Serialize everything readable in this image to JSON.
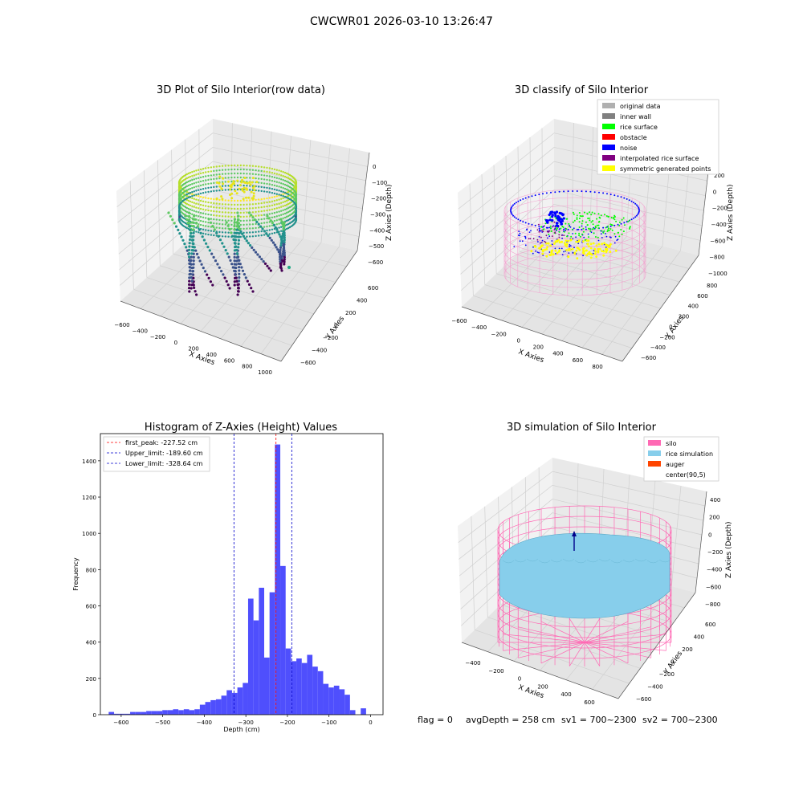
{
  "figure": {
    "suptitle": "CWCWR01 2026-03-10 13:26:47",
    "footer": {
      "flag": "flag = 0",
      "avg_depth": "avgDepth = 258 cm",
      "sv1": "sv1 = 700~2300",
      "sv2": "sv2 = 700~2300"
    }
  },
  "colors": {
    "hist_bar": "#4f4ffd",
    "first_peak": "#ff0000",
    "limits": "#0000cc",
    "pane": "#efefef",
    "silo": "#ff69b4",
    "rice_simulation": "#87ceeb",
    "auger": "#ff4500",
    "original": "#b0b0b0",
    "inner_wall": "#808080",
    "rice_surface": "#00ff00",
    "obstacle": "#ff0000",
    "noise": "#0000ff",
    "interpolated": "#800080",
    "symmetric": "#ffff00"
  },
  "chart_data": [
    {
      "type": "scatter",
      "projection": "3d",
      "title": "3D Plot of Silo Interior(row data)",
      "xlabel": "X Axies",
      "ylabel": "Y Axies",
      "zlabel": "Z Axies (Depth)",
      "xticks": [
        "−600",
        "−400",
        "−200",
        "0",
        "200",
        "400",
        "600",
        "800",
        "1000"
      ],
      "yticks": [
        "−600",
        "−400",
        "−200",
        "0",
        "200",
        "400",
        "600"
      ],
      "zticks": [
        "0",
        "−100",
        "−200",
        "−300",
        "−400",
        "−500",
        "−600"
      ],
      "colormap": "viridis",
      "grid": true
    },
    {
      "type": "scatter",
      "projection": "3d",
      "title": "3D classify of Silo Interior",
      "xlabel": "X Axies",
      "ylabel": "Y Axies",
      "zlabel": "Z Axies (Depth)",
      "xticks": [
        "−600",
        "−400",
        "−200",
        "0",
        "200",
        "400",
        "600",
        "800"
      ],
      "yticks": [
        "−600",
        "−400",
        "−200",
        "0",
        "200",
        "400",
        "600",
        "800"
      ],
      "zticks": [
        "200",
        "0",
        "−200",
        "−400",
        "−600",
        "−800",
        "−1000"
      ],
      "legend": [
        "original data",
        "inner wall",
        "rice surface",
        "obstacle",
        "noise",
        "interpolated rice surface",
        "symmetric generated points"
      ],
      "legend_position": "top-right",
      "grid": true
    },
    {
      "type": "bar",
      "title": "Histogram of Z-Axies (Height) Values",
      "xlabel": "Depth (cm)",
      "ylabel": "Frequency",
      "xlim": [
        -650,
        30
      ],
      "ylim": [
        0,
        1550
      ],
      "xticks": [
        -600,
        -500,
        -400,
        -300,
        -200,
        -100,
        0
      ],
      "yticks": [
        0,
        200,
        400,
        600,
        800,
        1000,
        1200,
        1400
      ],
      "bin_width": 12.9,
      "bin_start": -630,
      "values": [
        15,
        5,
        5,
        5,
        15,
        15,
        15,
        20,
        20,
        20,
        25,
        25,
        30,
        25,
        30,
        25,
        30,
        55,
        70,
        80,
        85,
        105,
        135,
        120,
        150,
        175,
        640,
        520,
        700,
        315,
        675,
        1490,
        820,
        365,
        295,
        310,
        285,
        330,
        265,
        240,
        170,
        150,
        160,
        140,
        110,
        25,
        0,
        35
      ],
      "lines": [
        {
          "label": "first_peak: -227.52 cm",
          "value": -227.52,
          "style": "red-dash"
        },
        {
          "label": "Upper_limit: -189.60 cm",
          "value": -189.6,
          "style": "blue-dash"
        },
        {
          "label": "Lower_limit: -328.64 cm",
          "value": -328.64,
          "style": "blue-dash"
        }
      ],
      "legend_position": "top-left",
      "grid": false
    },
    {
      "type": "surface",
      "projection": "3d",
      "title": "3D simulation of Silo Interior",
      "xlabel": "X Axies",
      "ylabel": "Y Axies",
      "zlabel": "Z Axies (Depth)",
      "xticks": [
        "−400",
        "−200",
        "0",
        "200",
        "400",
        "600"
      ],
      "yticks": [
        "−600",
        "−400",
        "−200",
        "0",
        "200",
        "400",
        "600"
      ],
      "zticks": [
        "400",
        "200",
        "0",
        "−200",
        "−400",
        "−600",
        "−800"
      ],
      "legend": [
        "silo",
        "rice simulation",
        "auger",
        "center(90,5)"
      ],
      "legend_position": "top-right",
      "grid": true
    }
  ]
}
